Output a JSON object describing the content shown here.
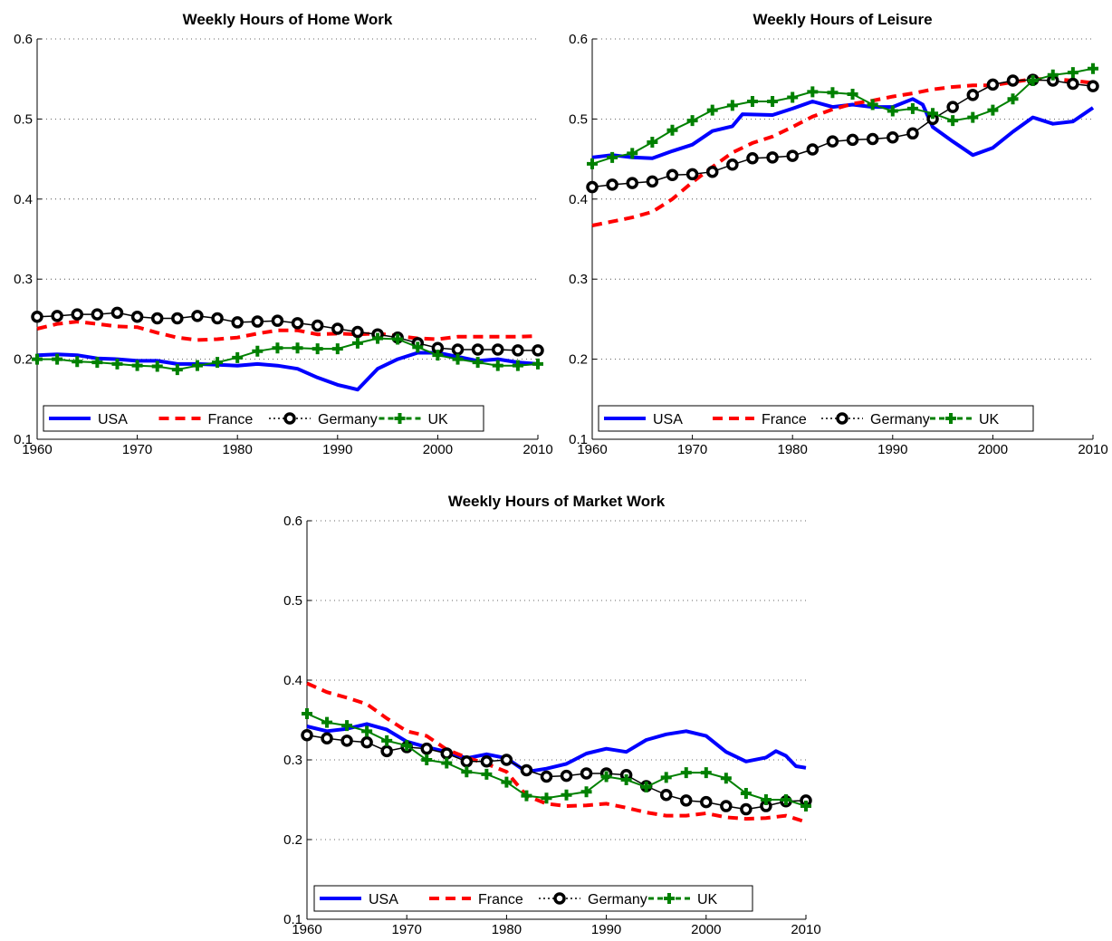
{
  "chart_data": [
    {
      "type": "line",
      "title": "Weekly Hours of Home Work",
      "xlabel": "",
      "ylabel": "",
      "xlim": [
        1960,
        2010
      ],
      "ylim": [
        0.1,
        0.6
      ],
      "xticks": [
        "1960",
        "1970",
        "1980",
        "1990",
        "2000",
        "2010"
      ],
      "yticks": [
        "0.1",
        "0.2",
        "0.3",
        "0.4",
        "0.5",
        "0.6"
      ],
      "grid": "horizontal dotted",
      "legend": "bottom, horizontal",
      "series": [
        {
          "name": "USA",
          "color": "#0000ff",
          "style": "solid",
          "x": [
            1960,
            1962,
            1964,
            1966,
            1968,
            1970,
            1972,
            1974,
            1976,
            1978,
            1980,
            1982,
            1984,
            1986,
            1988,
            1990,
            1992,
            1994,
            1996,
            1998,
            2000,
            2002,
            2004,
            2006,
            2008,
            2010
          ],
          "y": [
            0.205,
            0.206,
            0.205,
            0.201,
            0.2,
            0.198,
            0.198,
            0.194,
            0.194,
            0.193,
            0.192,
            0.194,
            0.192,
            0.188,
            0.177,
            0.168,
            0.162,
            0.188,
            0.2,
            0.208,
            0.208,
            0.203,
            0.198,
            0.2,
            0.196,
            0.194
          ]
        },
        {
          "name": "France",
          "color": "#ff0000",
          "style": "dashed",
          "x": [
            1960,
            1962,
            1964,
            1966,
            1968,
            1970,
            1972,
            1974,
            1976,
            1978,
            1980,
            1982,
            1984,
            1986,
            1988,
            1990,
            1992,
            1994,
            1996,
            1998,
            2000,
            2002,
            2004,
            2006,
            2008,
            2010
          ],
          "y": [
            0.238,
            0.244,
            0.247,
            0.244,
            0.241,
            0.24,
            0.233,
            0.227,
            0.224,
            0.225,
            0.227,
            0.232,
            0.236,
            0.236,
            0.231,
            0.232,
            0.231,
            0.232,
            0.229,
            0.226,
            0.225,
            0.228,
            0.228,
            0.228,
            0.228,
            0.229
          ]
        },
        {
          "name": "Germany",
          "color": "#000000",
          "style": "circles",
          "x": [
            1960,
            1962,
            1964,
            1966,
            1968,
            1970,
            1972,
            1974,
            1976,
            1978,
            1980,
            1982,
            1984,
            1986,
            1988,
            1990,
            1992,
            1994,
            1996,
            1998,
            2000,
            2002,
            2004,
            2006,
            2008,
            2010
          ],
          "y": [
            0.253,
            0.254,
            0.256,
            0.256,
            0.258,
            0.253,
            0.251,
            0.251,
            0.254,
            0.251,
            0.246,
            0.247,
            0.248,
            0.245,
            0.242,
            0.238,
            0.234,
            0.231,
            0.227,
            0.22,
            0.214,
            0.212,
            0.212,
            0.212,
            0.211,
            0.211
          ]
        },
        {
          "name": "UK",
          "color": "#008000",
          "style": "plus",
          "x": [
            1960,
            1962,
            1964,
            1966,
            1968,
            1970,
            1972,
            1974,
            1976,
            1978,
            1980,
            1982,
            1984,
            1986,
            1988,
            1990,
            1992,
            1994,
            1996,
            1998,
            2000,
            2002,
            2004,
            2006,
            2008,
            2010
          ],
          "y": [
            0.2,
            0.2,
            0.197,
            0.196,
            0.194,
            0.192,
            0.191,
            0.187,
            0.192,
            0.196,
            0.202,
            0.21,
            0.214,
            0.214,
            0.213,
            0.213,
            0.22,
            0.226,
            0.225,
            0.215,
            0.205,
            0.2,
            0.196,
            0.192,
            0.192,
            0.194
          ]
        }
      ]
    },
    {
      "type": "line",
      "title": "Weekly Hours of Leisure",
      "xlabel": "",
      "ylabel": "",
      "xlim": [
        1960,
        2010
      ],
      "ylim": [
        0.1,
        0.6
      ],
      "xticks": [
        "1960",
        "1970",
        "1980",
        "1990",
        "2000",
        "2010"
      ],
      "yticks": [
        "0.1",
        "0.2",
        "0.3",
        "0.4",
        "0.5",
        "0.6"
      ],
      "grid": "horizontal dotted",
      "legend": "bottom, horizontal",
      "series": [
        {
          "name": "USA",
          "color": "#0000ff",
          "style": "solid",
          "x": [
            1960,
            1962,
            1964,
            1966,
            1968,
            1970,
            1972,
            1974,
            1975,
            1978,
            1980,
            1982,
            1984,
            1986,
            1988,
            1990,
            1992,
            1993,
            1994,
            1996,
            1998,
            2000,
            2002,
            2004,
            2006,
            2008,
            2010
          ],
          "y": [
            0.452,
            0.455,
            0.452,
            0.451,
            0.46,
            0.468,
            0.485,
            0.491,
            0.506,
            0.505,
            0.513,
            0.522,
            0.515,
            0.518,
            0.515,
            0.515,
            0.525,
            0.518,
            0.49,
            0.472,
            0.455,
            0.464,
            0.484,
            0.502,
            0.494,
            0.497,
            0.514
          ]
        },
        {
          "name": "France",
          "color": "#ff0000",
          "style": "dashed",
          "x": [
            1960,
            1962,
            1964,
            1966,
            1968,
            1970,
            1972,
            1974,
            1976,
            1978,
            1980,
            1982,
            1984,
            1986,
            1988,
            1990,
            1992,
            1994,
            1996,
            1998,
            2000,
            2002,
            2004,
            2006,
            2008,
            2010
          ],
          "y": [
            0.367,
            0.372,
            0.377,
            0.384,
            0.4,
            0.421,
            0.44,
            0.458,
            0.47,
            0.478,
            0.49,
            0.503,
            0.512,
            0.519,
            0.523,
            0.528,
            0.532,
            0.537,
            0.54,
            0.542,
            0.542,
            0.546,
            0.55,
            0.55,
            0.548,
            0.545
          ]
        },
        {
          "name": "Germany",
          "color": "#000000",
          "style": "circles",
          "x": [
            1960,
            1962,
            1964,
            1966,
            1968,
            1970,
            1972,
            1974,
            1976,
            1978,
            1980,
            1982,
            1984,
            1986,
            1988,
            1990,
            1992,
            1994,
            1996,
            1998,
            2000,
            2002,
            2004,
            2006,
            2008,
            2010
          ],
          "y": [
            0.415,
            0.418,
            0.42,
            0.422,
            0.43,
            0.431,
            0.434,
            0.443,
            0.451,
            0.452,
            0.454,
            0.462,
            0.472,
            0.474,
            0.475,
            0.477,
            0.482,
            0.5,
            0.515,
            0.53,
            0.543,
            0.548,
            0.549,
            0.548,
            0.544,
            0.541
          ]
        },
        {
          "name": "UK",
          "color": "#008000",
          "style": "plus",
          "x": [
            1960,
            1962,
            1964,
            1966,
            1968,
            1970,
            1972,
            1974,
            1976,
            1978,
            1980,
            1982,
            1984,
            1986,
            1988,
            1990,
            1992,
            1994,
            1996,
            1998,
            2000,
            2002,
            2004,
            2006,
            2008,
            2010
          ],
          "y": [
            0.444,
            0.452,
            0.457,
            0.471,
            0.486,
            0.498,
            0.511,
            0.517,
            0.522,
            0.522,
            0.527,
            0.534,
            0.533,
            0.531,
            0.518,
            0.51,
            0.513,
            0.507,
            0.498,
            0.502,
            0.511,
            0.525,
            0.548,
            0.555,
            0.558,
            0.563
          ]
        }
      ]
    },
    {
      "type": "line",
      "title": "Weekly Hours of Market Work",
      "xlabel": "",
      "ylabel": "",
      "xlim": [
        1960,
        2010
      ],
      "ylim": [
        0.1,
        0.6
      ],
      "xticks": [
        "1960",
        "1970",
        "1980",
        "1990",
        "2000",
        "2010"
      ],
      "yticks": [
        "0.1",
        "0.2",
        "0.3",
        "0.4",
        "0.5",
        "0.6"
      ],
      "grid": "horizontal dotted",
      "legend": "bottom, horizontal",
      "series": [
        {
          "name": "USA",
          "color": "#0000ff",
          "style": "solid",
          "x": [
            1960,
            1962,
            1964,
            1966,
            1968,
            1970,
            1972,
            1974,
            1976,
            1978,
            1980,
            1982,
            1984,
            1986,
            1988,
            1990,
            1992,
            1994,
            1996,
            1998,
            2000,
            2002,
            2004,
            2006,
            2007,
            2008,
            2009,
            2010
          ],
          "y": [
            0.342,
            0.336,
            0.339,
            0.345,
            0.338,
            0.323,
            0.316,
            0.31,
            0.302,
            0.307,
            0.302,
            0.285,
            0.289,
            0.295,
            0.308,
            0.314,
            0.31,
            0.325,
            0.332,
            0.336,
            0.33,
            0.31,
            0.298,
            0.303,
            0.311,
            0.305,
            0.292,
            0.29
          ]
        },
        {
          "name": "France",
          "color": "#ff0000",
          "style": "dashed",
          "x": [
            1960,
            1962,
            1964,
            1966,
            1968,
            1970,
            1972,
            1974,
            1976,
            1978,
            1980,
            1982,
            1984,
            1986,
            1988,
            1990,
            1992,
            1994,
            1996,
            1998,
            2000,
            2002,
            2004,
            2006,
            2008,
            2010
          ],
          "y": [
            0.396,
            0.385,
            0.378,
            0.37,
            0.352,
            0.336,
            0.33,
            0.313,
            0.303,
            0.295,
            0.285,
            0.255,
            0.245,
            0.242,
            0.243,
            0.245,
            0.24,
            0.234,
            0.23,
            0.23,
            0.233,
            0.228,
            0.226,
            0.227,
            0.23,
            0.222
          ]
        },
        {
          "name": "Germany",
          "color": "#000000",
          "style": "circles",
          "x": [
            1960,
            1962,
            1964,
            1966,
            1968,
            1970,
            1972,
            1974,
            1976,
            1978,
            1980,
            1982,
            1984,
            1986,
            1988,
            1990,
            1992,
            1994,
            1996,
            1998,
            2000,
            2002,
            2004,
            2006,
            2008,
            2010
          ],
          "y": [
            0.331,
            0.327,
            0.324,
            0.322,
            0.311,
            0.316,
            0.314,
            0.308,
            0.298,
            0.298,
            0.3,
            0.287,
            0.279,
            0.28,
            0.283,
            0.283,
            0.281,
            0.267,
            0.256,
            0.249,
            0.247,
            0.242,
            0.238,
            0.242,
            0.248,
            0.249
          ]
        },
        {
          "name": "UK",
          "color": "#008000",
          "style": "plus",
          "x": [
            1960,
            1962,
            1964,
            1966,
            1968,
            1970,
            1972,
            1974,
            1976,
            1978,
            1980,
            1982,
            1984,
            1986,
            1988,
            1990,
            1992,
            1994,
            1996,
            1998,
            2000,
            2002,
            2004,
            2006,
            2008,
            2010
          ],
          "y": [
            0.358,
            0.347,
            0.343,
            0.336,
            0.324,
            0.318,
            0.3,
            0.296,
            0.285,
            0.282,
            0.272,
            0.255,
            0.252,
            0.256,
            0.26,
            0.279,
            0.275,
            0.266,
            0.278,
            0.284,
            0.284,
            0.277,
            0.258,
            0.25,
            0.25,
            0.242
          ]
        }
      ]
    }
  ]
}
